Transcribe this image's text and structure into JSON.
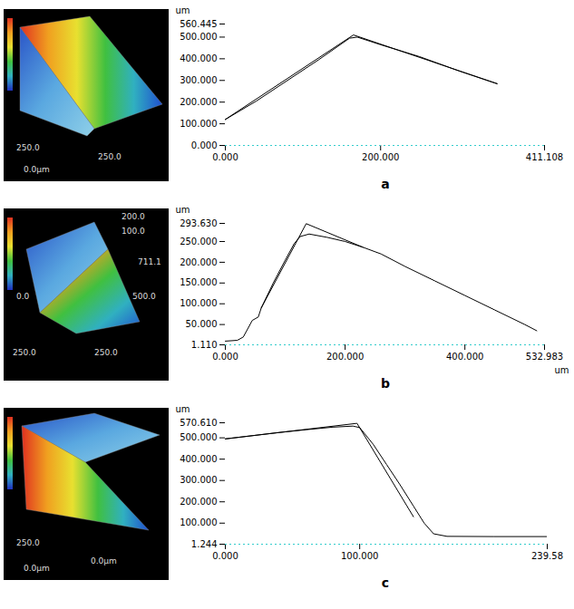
{
  "chart_data": [
    {
      "type": "line",
      "title": "a",
      "ylabel": "um",
      "xlim": [
        0,
        411.108
      ],
      "xticks": [
        {
          "value": 0,
          "label": "0.000"
        },
        {
          "value": 200,
          "label": "200.000"
        },
        411.108
      ],
      "ylim": [
        0,
        560.445
      ],
      "yticks": [
        {
          "value": 0,
          "label": "0.000"
        },
        {
          "value": 100,
          "label": "100.000"
        },
        {
          "value": 200,
          "label": "200.000"
        },
        {
          "value": 300,
          "label": "300.000"
        },
        {
          "value": 400,
          "label": "400.000"
        },
        {
          "value": 500,
          "label": "500.000"
        },
        560.445
      ],
      "grid": false,
      "series": [
        {
          "color": "#000000",
          "line_style": "solid",
          "x": [
            0,
            40,
            80,
            120,
            150,
            160,
            170,
            200,
            250,
            300,
            350
          ],
          "values": [
            120,
            205,
            300,
            395,
            470,
            495,
            500,
            465,
            410,
            345,
            285
          ]
        },
        {
          "color": "#000000",
          "line_style": "solid",
          "x": [
            0,
            165,
            350
          ],
          "values": [
            120,
            510,
            285
          ]
        }
      ]
    },
    {
      "type": "line",
      "title": "b",
      "ylabel": "um",
      "xlabel": "um",
      "xlim": [
        0,
        532.983
      ],
      "xticks": [
        {
          "value": 0,
          "label": "0.000"
        },
        {
          "value": 200,
          "label": "200.000"
        },
        {
          "value": 400,
          "label": "400.000"
        },
        532.983
      ],
      "ylim": [
        1.11,
        293.63
      ],
      "yticks": [
        {
          "value": 1.11,
          "label": "1.110"
        },
        {
          "value": 50,
          "label": "50.000"
        },
        {
          "value": 100,
          "label": "100.000"
        },
        {
          "value": 150,
          "label": "150.000"
        },
        {
          "value": 200,
          "label": "200.000"
        },
        {
          "value": 250,
          "label": "250.000"
        },
        {
          "value": 293.63,
          "label": "293.630"
        }
      ],
      "grid": false,
      "series": [
        {
          "color": "#000000",
          "line_style": "solid",
          "x": [
            0,
            20,
            30,
            45,
            55,
            60,
            80,
            100,
            115,
            125,
            140,
            170,
            200,
            230,
            260,
            300,
            350,
            400,
            450,
            500,
            520
          ],
          "values": [
            10,
            12,
            20,
            60,
            68,
            90,
            150,
            205,
            245,
            262,
            268,
            260,
            250,
            236,
            220,
            190,
            155,
            120,
            85,
            50,
            35
          ]
        },
        {
          "color": "#000000",
          "line_style": "solid",
          "x": [
            60,
            135,
            230
          ],
          "values": [
            90,
            293,
            236
          ]
        }
      ]
    },
    {
      "type": "line",
      "title": "c",
      "ylabel": "um",
      "xlim": [
        0,
        239.58
      ],
      "xticks": [
        {
          "value": 0,
          "label": "0.000"
        },
        {
          "value": 100,
          "label": "100.000"
        },
        239.58
      ],
      "ylim": [
        1.244,
        570.61
      ],
      "yticks": [
        {
          "value": 1.244,
          "label": "1.244"
        },
        {
          "value": 100,
          "label": "100.000"
        },
        {
          "value": 200,
          "label": "200.000"
        },
        {
          "value": 300,
          "label": "300.000"
        },
        {
          "value": 400,
          "label": "400.000"
        },
        {
          "value": 500,
          "label": "500.000"
        },
        {
          "value": 570.61,
          "label": "570.610"
        }
      ],
      "grid": false,
      "series": [
        {
          "color": "#000000",
          "line_style": "solid",
          "x": [
            0,
            20,
            40,
            60,
            80,
            95,
            100,
            110,
            120,
            130,
            140,
            148,
            155,
            165,
            200,
            239
          ],
          "values": [
            495,
            510,
            525,
            538,
            550,
            555,
            548,
            470,
            375,
            280,
            180,
            100,
            50,
            38,
            37,
            37
          ]
        },
        {
          "color": "#000000",
          "line_style": "solid",
          "x": [
            0,
            98,
            140
          ],
          "values": [
            495,
            568,
            130
          ]
        }
      ]
    }
  ],
  "surface_images": [
    {
      "labels": [
        "250.0",
        "0.0μm",
        "250.0"
      ]
    },
    {
      "labels": [
        "200.0",
        "100.0",
        "0.0",
        "711.1",
        "500.0",
        "250.0",
        "250.0"
      ]
    },
    {
      "labels": [
        "250.0",
        "0.0μm",
        "0.0μm"
      ]
    }
  ]
}
